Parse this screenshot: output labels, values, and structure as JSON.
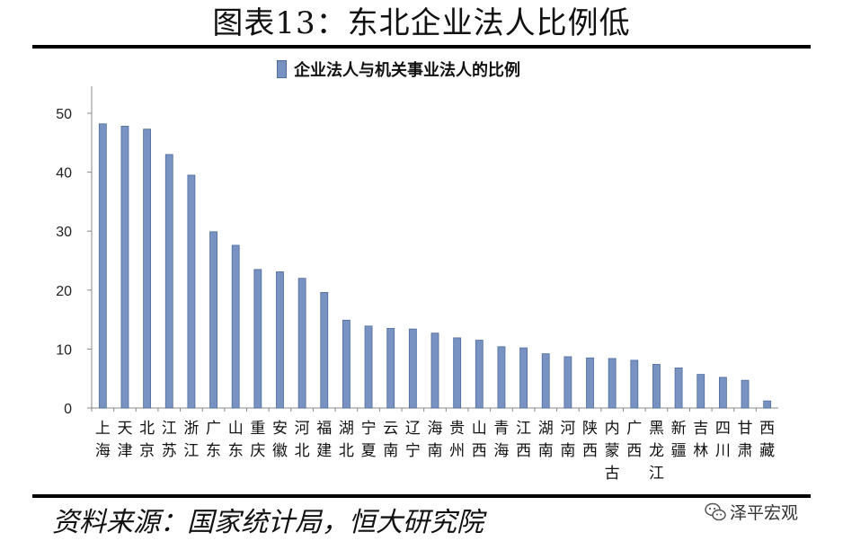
{
  "header": {
    "title": "图表13：东北企业法人比例低"
  },
  "source": {
    "text": "资料来源：国家统计局，恒大研究院"
  },
  "watermark": {
    "text": "泽平宏观",
    "icon": "wechat-icon"
  },
  "colors": {
    "bar": "#7892c2",
    "bar_edge": "#4e6a9e",
    "axis": "#888888"
  },
  "chart_data": {
    "type": "bar",
    "legend": "企业法人与机关事业法人的比例",
    "legend_position": "top",
    "grid": false,
    "ylim": [
      0,
      50
    ],
    "yticks": [
      0,
      10,
      20,
      30,
      40,
      50
    ],
    "categories": [
      "上海",
      "天津",
      "北京",
      "江苏",
      "浙江",
      "广东",
      "山东",
      "重庆",
      "安徽",
      "河北",
      "福建",
      "湖北",
      "宁夏",
      "云南",
      "辽宁",
      "海南",
      "贵州",
      "山西",
      "青海",
      "江西",
      "湖南",
      "河南",
      "陕西",
      "内蒙古",
      "广西",
      "黑龙江",
      "新疆",
      "吉林",
      "四川",
      "甘肃",
      "西藏"
    ],
    "series": [
      {
        "name": "企业法人与机关事业法人的比例",
        "values": [
          48.2,
          47.8,
          47.3,
          43.0,
          39.5,
          29.9,
          27.6,
          23.5,
          23.1,
          22.0,
          19.6,
          14.9,
          13.9,
          13.5,
          13.4,
          12.7,
          11.9,
          11.5,
          10.4,
          10.2,
          9.2,
          8.7,
          8.5,
          8.4,
          8.1,
          7.4,
          6.8,
          5.7,
          5.2,
          4.7,
          1.2
        ]
      }
    ]
  }
}
